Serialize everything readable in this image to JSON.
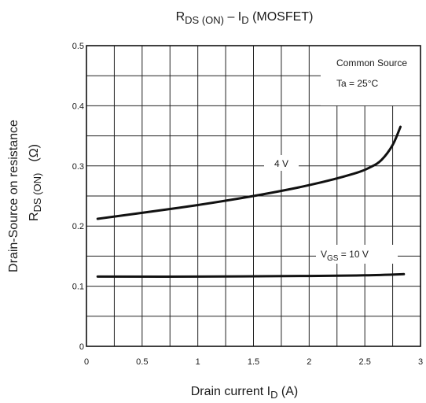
{
  "chart_data": {
    "type": "line",
    "title": {
      "main": "R",
      "sub1": "DS (ON)",
      "mid": " – I",
      "sub2": "D",
      "tail": " (MOSFET)"
    },
    "xlabel": {
      "main": "Drain current   I",
      "sub": "D",
      "tail": "   (A)"
    },
    "ylabel": {
      "line1": "Drain-Source on resistance",
      "line2_main": "R",
      "line2_sub": "DS (ON)",
      "line2_unit": "(Ω)"
    },
    "xlim": [
      0,
      3
    ],
    "ylim": [
      0,
      0.5
    ],
    "x_ticks": [
      {
        "value": 0,
        "label": "0"
      },
      {
        "value": 0.5,
        "label": "0.5"
      },
      {
        "value": 1,
        "label": "1"
      },
      {
        "value": 1.5,
        "label": "1.5"
      },
      {
        "value": 2,
        "label": "2"
      },
      {
        "value": 2.5,
        "label": "2.5"
      },
      {
        "value": 3,
        "label": "3"
      }
    ],
    "y_ticks": [
      {
        "value": 0,
        "label": "0"
      },
      {
        "value": 0.1,
        "label": "0.1"
      },
      {
        "value": 0.2,
        "label": "0.2"
      },
      {
        "value": 0.3,
        "label": "0.3"
      },
      {
        "value": 0.4,
        "label": "0.4"
      },
      {
        "value": 0.5,
        "label": "0.5"
      }
    ],
    "grid": true,
    "legend_box": {
      "line1": "Common Source",
      "line2": "Ta = 25°C"
    },
    "series": [
      {
        "label": "4 V",
        "x": [
          0.1,
          0.5,
          1.0,
          1.5,
          2.0,
          2.4,
          2.55,
          2.65,
          2.75,
          2.82
        ],
        "y": [
          0.212,
          0.222,
          0.235,
          0.25,
          0.268,
          0.287,
          0.298,
          0.31,
          0.335,
          0.365
        ]
      },
      {
        "label": {
          "main": "V",
          "sub": "GS",
          "tail": " = 10 V"
        },
        "x": [
          0.1,
          1.0,
          2.0,
          2.5,
          2.85
        ],
        "y": [
          0.116,
          0.116,
          0.117,
          0.118,
          0.12
        ]
      }
    ]
  }
}
